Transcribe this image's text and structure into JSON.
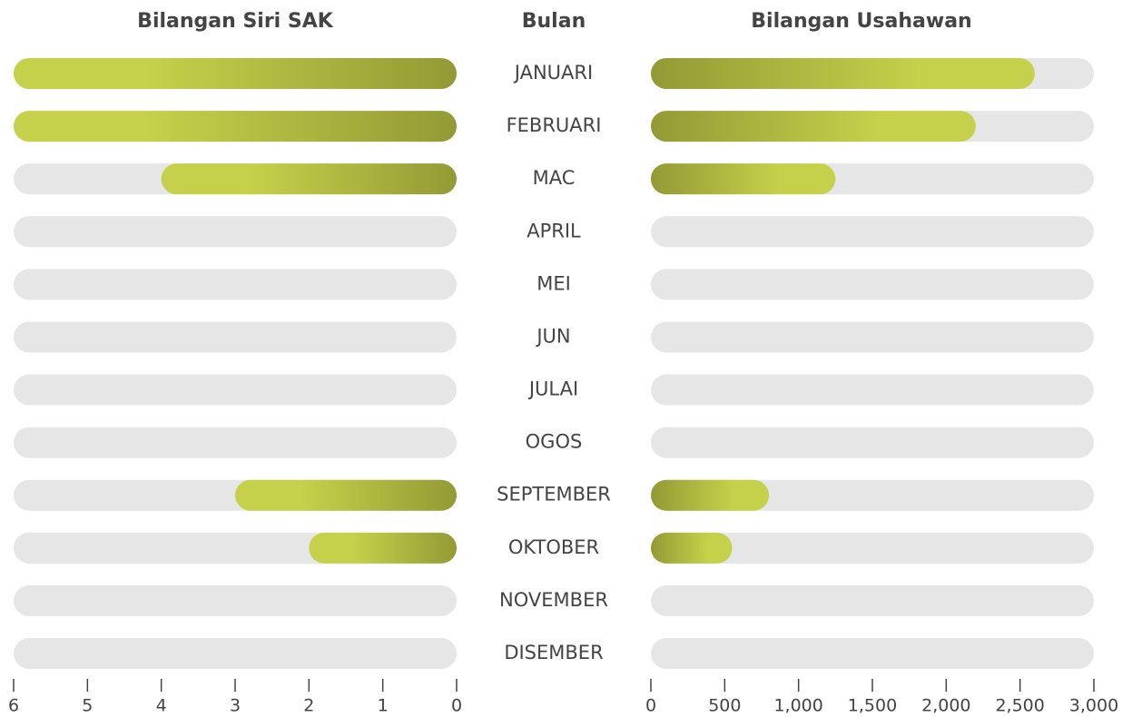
{
  "chart_data": {
    "type": "bar",
    "ylabel": "Bulan",
    "categories": [
      "JANUARI",
      "FEBRUARI",
      "MAC",
      "APRIL",
      "MEI",
      "JUN",
      "JULAI",
      "OGOS",
      "SEPTEMBER",
      "OKTOBER",
      "NOVEMBER",
      "DISEMBER"
    ],
    "track_color": "#e6e6e6",
    "series": [
      {
        "name": "Bilangan Siri SAK",
        "color": "#c5d14a",
        "gradient_end": "#939a35",
        "values": [
          6,
          6,
          4,
          0,
          0,
          0,
          0,
          0,
          3,
          2,
          0,
          0
        ],
        "xlim": [
          6,
          0
        ],
        "xticks": [
          6,
          5,
          4,
          3,
          2,
          1,
          0
        ]
      },
      {
        "name": "Bilangan Usahawan",
        "color": "#c5d14a",
        "gradient_end": "#939a35",
        "values": [
          2600,
          2200,
          1250,
          0,
          0,
          0,
          0,
          0,
          800,
          550,
          0,
          0
        ],
        "xlim": [
          0,
          3000
        ],
        "xticks": [
          0,
          500,
          {
            "value": 1000,
            "label": "1,000"
          },
          {
            "value": 1500,
            "label": "1,500"
          },
          {
            "value": 2000,
            "label": "2,000"
          },
          {
            "value": 2500,
            "label": "2,500"
          },
          {
            "value": 3000,
            "label": "3,000"
          }
        ]
      }
    ]
  }
}
